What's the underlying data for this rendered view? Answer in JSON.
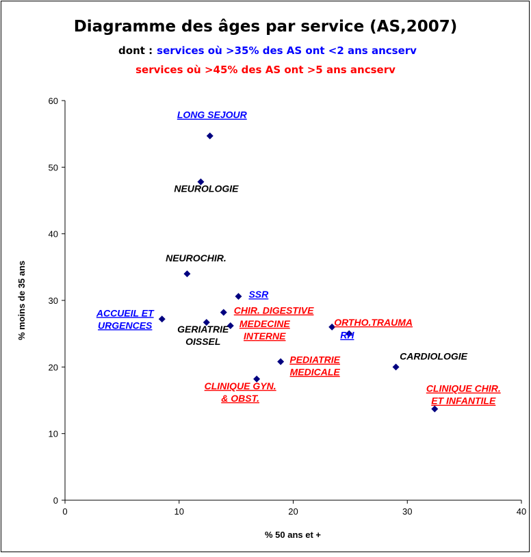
{
  "chart_data": {
    "type": "scatter",
    "title": "Diagramme des âges par service (AS,2007)",
    "subtitle_prefix": "dont :",
    "subtitle_lines": [
      {
        "text": "services où >35% des AS ont <2 ans ancserv",
        "color": "#0000ff"
      },
      {
        "text": "services où >45% des AS ont >5 ans ancserv",
        "color": "#ff0000"
      }
    ],
    "xlabel": "% 50 ans et +",
    "ylabel": "% moins de 35 ans",
    "xlim": [
      0,
      40
    ],
    "xticks": [
      0,
      10,
      20,
      30,
      40
    ],
    "ylim": [
      0,
      60
    ],
    "yticks": [
      0,
      10,
      20,
      30,
      40,
      50,
      60
    ],
    "series": [
      {
        "color": "#000080",
        "x": [
          12.7,
          11.9,
          10.7,
          15.2,
          8.5,
          12.4,
          13.9,
          14.5,
          23.4,
          24.9,
          18.9,
          29.0,
          16.8,
          32.4
        ],
        "values": [
          54.7,
          47.8,
          34,
          30.6,
          27.2,
          26.7,
          28.2,
          26.2,
          26,
          25,
          20.8,
          20,
          18.2,
          13.7
        ],
        "labels": [
          [
            "LONG SEJOUR"
          ],
          [
            "NEUROLOGIE"
          ],
          [
            "NEUROCHIR."
          ],
          [
            "SSR"
          ],
          [
            "ACCUEIL ET",
            "URGENCES"
          ],
          [
            "GERIATRIE",
            "OISSEL"
          ],
          [
            "CHIR. DIGESTIVE"
          ],
          [
            "MEDECINE",
            "INTERNE"
          ],
          [
            "ORTHO.TRAUMA"
          ],
          [
            "RH"
          ],
          [
            "PEDIATRIE",
            "MEDICALE"
          ],
          [
            "CARDIOLOGIE"
          ],
          [
            "CLINIQUE GYN.",
            "& OBST."
          ],
          [
            "CLINIQUE CHIR.",
            "ET INFANTILE"
          ]
        ],
        "label_colors": [
          "#0000ff",
          "#000000",
          "#000000",
          "#0000ff",
          "#0000ff",
          "#000000",
          "#ff0000",
          "#ff0000",
          "#ff0000",
          "#0000ff",
          "#ff0000",
          "#000000",
          "#ff0000",
          "#ff0000"
        ]
      }
    ]
  }
}
